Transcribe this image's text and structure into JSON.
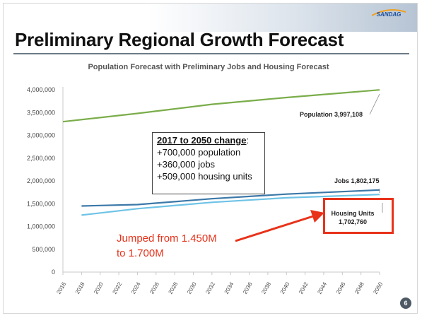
{
  "slide": {
    "logo_text": "SANDAG",
    "title": "Preliminary Regional Growth Forecast",
    "page_number": "6",
    "colors": {
      "accent_red": "#e8321a",
      "population": "#7aad4a",
      "jobs": "#3b78a8",
      "housing": "#6ec3e6"
    }
  },
  "chart_data": {
    "type": "line",
    "title": "Population Forecast with Preliminary Jobs and Housing Forecast",
    "xlabel": "",
    "ylabel": "",
    "x": [
      2016,
      2018,
      2020,
      2022,
      2024,
      2026,
      2028,
      2030,
      2032,
      2034,
      2036,
      2038,
      2040,
      2042,
      2044,
      2046,
      2048,
      2050
    ],
    "x_tick_labels": [
      "2016",
      "2018",
      "2020",
      "2022",
      "2024",
      "2026",
      "2028",
      "2030",
      "2032",
      "2034",
      "2036",
      "2038",
      "2040",
      "2042",
      "2044",
      "2046",
      "2048",
      "2050"
    ],
    "ylim": [
      0,
      4000000
    ],
    "y_ticks": [
      0,
      500000,
      1000000,
      1500000,
      2000000,
      2500000,
      3000000,
      3500000,
      4000000
    ],
    "y_tick_labels": [
      "0",
      "500,000",
      "1,000,000",
      "1,500,000",
      "2,000,000",
      "2,500,000",
      "3,000,000",
      "3,500,000",
      "4,000,000"
    ],
    "grid": false,
    "series": [
      {
        "name": "Population",
        "color": "#7aad4a",
        "points": [
          [
            2016,
            3300000
          ],
          [
            2024,
            3480000
          ],
          [
            2032,
            3680000
          ],
          [
            2040,
            3830000
          ],
          [
            2050,
            3997108
          ]
        ],
        "end_label": "Population",
        "end_value_label": "3,997,108"
      },
      {
        "name": "Jobs",
        "color": "#3b78a8",
        "points": [
          [
            2018,
            1450000
          ],
          [
            2024,
            1480000
          ],
          [
            2032,
            1610000
          ],
          [
            2040,
            1710000
          ],
          [
            2050,
            1802175
          ]
        ],
        "end_label": "Jobs",
        "end_value_label": "1,802,175"
      },
      {
        "name": "Housing Units",
        "color": "#6ec3e6",
        "points": [
          [
            2018,
            1250000
          ],
          [
            2024,
            1390000
          ],
          [
            2032,
            1530000
          ],
          [
            2040,
            1630000
          ],
          [
            2050,
            1702760
          ]
        ],
        "end_label": "Housing Units",
        "end_value_label": "1,702,760"
      }
    ],
    "annotations": {
      "change_box": {
        "header": "2017 to 2050 change",
        "header_suffix": ":",
        "lines": [
          "+700,000 population",
          "+360,000 jobs",
          "+509,000 housing units"
        ]
      },
      "jump_note": {
        "line1": "Jumped from 1.450M",
        "line2": "to 1.700M"
      }
    }
  }
}
